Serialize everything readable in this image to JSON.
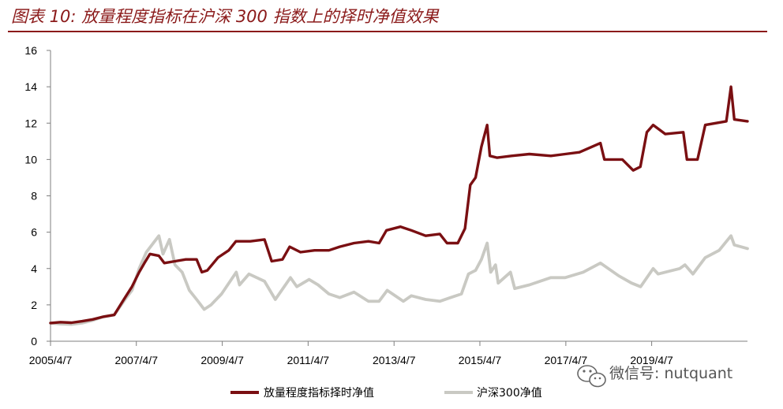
{
  "title": "图表 10:  放量程度指标在沪深 300 指数上的择时净值效果",
  "watermark": "微信号: nutquant",
  "colors": {
    "strategy": "#7a0f12",
    "index": "#c9c9c3",
    "title": "#8b1a1a"
  },
  "chart_data": {
    "type": "line",
    "title": "",
    "xlabel": "",
    "ylabel": "",
    "ylim": [
      0,
      16
    ],
    "yticks": [
      0,
      2,
      4,
      6,
      8,
      10,
      12,
      14,
      16
    ],
    "xlim": [
      "2005-04-07",
      "2021-06-30"
    ],
    "xtick_labels": [
      "2005/4/7",
      "2007/4/7",
      "2009/4/7",
      "2011/4/7",
      "2013/4/7",
      "2015/4/7",
      "2017/4/7",
      "2019/4/7"
    ],
    "xtick_dates": [
      "2005-04-07",
      "2007-04-07",
      "2009-04-07",
      "2011-04-07",
      "2013-04-07",
      "2015-04-07",
      "2017-04-07",
      "2019-04-07"
    ],
    "grid": false,
    "legend_position": "bottom",
    "series": [
      {
        "name": "放量程度指标择时净值",
        "color": "#7a0f12",
        "points": [
          [
            "2005-04-07",
            1.0
          ],
          [
            "2005-07-01",
            1.05
          ],
          [
            "2005-10-01",
            1.02
          ],
          [
            "2006-01-01",
            1.1
          ],
          [
            "2006-04-01",
            1.2
          ],
          [
            "2006-07-01",
            1.35
          ],
          [
            "2006-10-01",
            1.45
          ],
          [
            "2007-01-01",
            2.4
          ],
          [
            "2007-03-01",
            3.0
          ],
          [
            "2007-05-01",
            3.8
          ],
          [
            "2007-06-15",
            4.3
          ],
          [
            "2007-08-01",
            4.8
          ],
          [
            "2007-10-16",
            4.7
          ],
          [
            "2007-12-01",
            4.3
          ],
          [
            "2008-03-01",
            4.4
          ],
          [
            "2008-06-01",
            4.5
          ],
          [
            "2008-09-01",
            4.5
          ],
          [
            "2008-10-15",
            3.8
          ],
          [
            "2008-12-01",
            3.9
          ],
          [
            "2009-03-01",
            4.6
          ],
          [
            "2009-06-01",
            5.0
          ],
          [
            "2009-08-01",
            5.5
          ],
          [
            "2009-12-01",
            5.5
          ],
          [
            "2010-04-01",
            5.6
          ],
          [
            "2010-06-01",
            4.4
          ],
          [
            "2010-09-01",
            4.5
          ],
          [
            "2010-11-01",
            5.2
          ],
          [
            "2011-02-01",
            4.9
          ],
          [
            "2011-06-01",
            5.0
          ],
          [
            "2011-10-01",
            5.0
          ],
          [
            "2012-01-01",
            5.2
          ],
          [
            "2012-05-01",
            5.4
          ],
          [
            "2012-09-01",
            5.5
          ],
          [
            "2012-12-01",
            5.4
          ],
          [
            "2013-02-01",
            6.1
          ],
          [
            "2013-06-01",
            6.3
          ],
          [
            "2013-09-01",
            6.1
          ],
          [
            "2014-01-01",
            5.8
          ],
          [
            "2014-05-01",
            5.9
          ],
          [
            "2014-07-01",
            5.4
          ],
          [
            "2014-10-01",
            5.4
          ],
          [
            "2014-12-01",
            6.2
          ],
          [
            "2015-01-15",
            8.6
          ],
          [
            "2015-03-01",
            9.0
          ],
          [
            "2015-04-20",
            10.7
          ],
          [
            "2015-06-08",
            11.9
          ],
          [
            "2015-07-01",
            10.2
          ],
          [
            "2015-09-01",
            10.1
          ],
          [
            "2016-01-01",
            10.2
          ],
          [
            "2016-06-01",
            10.3
          ],
          [
            "2016-12-01",
            10.2
          ],
          [
            "2017-04-01",
            10.3
          ],
          [
            "2017-08-01",
            10.4
          ],
          [
            "2018-01-26",
            10.9
          ],
          [
            "2018-03-01",
            10.0
          ],
          [
            "2018-08-01",
            10.0
          ],
          [
            "2018-11-01",
            9.4
          ],
          [
            "2019-01-01",
            9.6
          ],
          [
            "2019-02-25",
            11.5
          ],
          [
            "2019-04-20",
            11.9
          ],
          [
            "2019-08-01",
            11.4
          ],
          [
            "2020-01-01",
            11.5
          ],
          [
            "2020-02-01",
            10.0
          ],
          [
            "2020-05-01",
            10.0
          ],
          [
            "2020-07-06",
            11.9
          ],
          [
            "2020-10-01",
            12.0
          ],
          [
            "2021-01-01",
            12.1
          ],
          [
            "2021-02-10",
            14.0
          ],
          [
            "2021-03-10",
            12.2
          ],
          [
            "2021-06-30",
            12.1
          ]
        ]
      },
      {
        "name": "沪深300净值",
        "color": "#c9c9c3",
        "points": [
          [
            "2005-04-07",
            1.0
          ],
          [
            "2005-07-01",
            0.95
          ],
          [
            "2005-10-01",
            0.93
          ],
          [
            "2006-01-01",
            1.0
          ],
          [
            "2006-04-01",
            1.15
          ],
          [
            "2006-07-01",
            1.35
          ],
          [
            "2006-10-01",
            1.45
          ],
          [
            "2007-01-01",
            2.3
          ],
          [
            "2007-03-01",
            2.8
          ],
          [
            "2007-05-01",
            4.0
          ],
          [
            "2007-07-01",
            4.9
          ],
          [
            "2007-10-16",
            5.8
          ],
          [
            "2007-11-20",
            4.8
          ],
          [
            "2008-01-14",
            5.6
          ],
          [
            "2008-03-01",
            4.2
          ],
          [
            "2008-05-01",
            3.8
          ],
          [
            "2008-07-01",
            2.8
          ],
          [
            "2008-09-01",
            2.3
          ],
          [
            "2008-11-04",
            1.75
          ],
          [
            "2009-01-01",
            2.0
          ],
          [
            "2009-04-01",
            2.6
          ],
          [
            "2009-08-04",
            3.8
          ],
          [
            "2009-09-01",
            3.1
          ],
          [
            "2009-11-20",
            3.7
          ],
          [
            "2010-04-01",
            3.3
          ],
          [
            "2010-07-02",
            2.3
          ],
          [
            "2010-11-08",
            3.5
          ],
          [
            "2011-01-01",
            3.0
          ],
          [
            "2011-04-15",
            3.4
          ],
          [
            "2011-07-01",
            3.1
          ],
          [
            "2011-10-01",
            2.6
          ],
          [
            "2012-01-01",
            2.4
          ],
          [
            "2012-05-01",
            2.7
          ],
          [
            "2012-09-01",
            2.2
          ],
          [
            "2012-12-01",
            2.2
          ],
          [
            "2013-02-08",
            2.8
          ],
          [
            "2013-06-25",
            2.2
          ],
          [
            "2013-09-01",
            2.5
          ],
          [
            "2014-01-01",
            2.3
          ],
          [
            "2014-05-01",
            2.2
          ],
          [
            "2014-08-01",
            2.4
          ],
          [
            "2014-11-01",
            2.6
          ],
          [
            "2014-12-31",
            3.7
          ],
          [
            "2015-03-01",
            3.9
          ],
          [
            "2015-04-20",
            4.5
          ],
          [
            "2015-06-08",
            5.4
          ],
          [
            "2015-07-08",
            3.8
          ],
          [
            "2015-08-18",
            4.2
          ],
          [
            "2015-09-10",
            3.2
          ],
          [
            "2015-12-23",
            3.8
          ],
          [
            "2016-01-28",
            2.9
          ],
          [
            "2016-06-01",
            3.1
          ],
          [
            "2016-11-29",
            3.5
          ],
          [
            "2017-04-01",
            3.5
          ],
          [
            "2017-09-01",
            3.8
          ],
          [
            "2018-01-26",
            4.3
          ],
          [
            "2018-07-01",
            3.6
          ],
          [
            "2018-10-18",
            3.2
          ],
          [
            "2019-01-03",
            3.0
          ],
          [
            "2019-04-20",
            4.0
          ],
          [
            "2019-06-01",
            3.7
          ],
          [
            "2019-12-01",
            4.0
          ],
          [
            "2020-01-15",
            4.2
          ],
          [
            "2020-03-23",
            3.7
          ],
          [
            "2020-07-06",
            4.6
          ],
          [
            "2020-11-01",
            5.0
          ],
          [
            "2021-02-10",
            5.8
          ],
          [
            "2021-03-10",
            5.3
          ],
          [
            "2021-06-30",
            5.1
          ]
        ]
      }
    ]
  }
}
